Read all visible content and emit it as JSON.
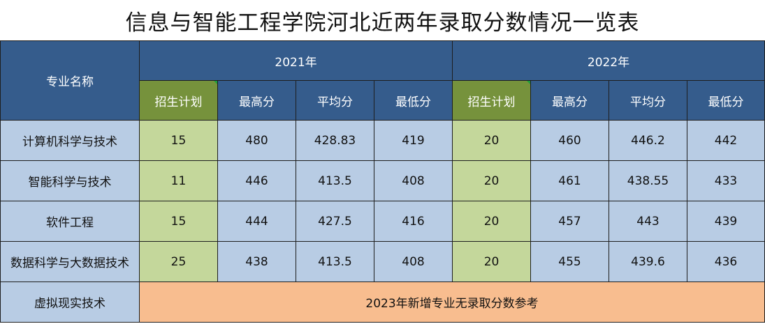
{
  "title": "信息与智能工程学院 河北 近两年录取分数情况一览表",
  "title_segments": [
    "信息与智能工程学院",
    "河北",
    "近两年录取分数情况一览表"
  ],
  "header": {
    "major_name": "专业名称",
    "years": [
      "2021年",
      "2022年"
    ],
    "columns": [
      "招生计划",
      "最高分",
      "平均分",
      "最低分"
    ]
  },
  "rows": [
    {
      "name": "计算机科学与技术",
      "y2021": [
        "15",
        "480",
        "428.83",
        "419"
      ],
      "y2022": [
        "20",
        "460",
        "446.2",
        "442"
      ]
    },
    {
      "name": "智能科学与技术",
      "y2021": [
        "11",
        "446",
        "413.5",
        "408"
      ],
      "y2022": [
        "20",
        "461",
        "438.55",
        "433"
      ]
    },
    {
      "name": "软件工程",
      "y2021": [
        "15",
        "444",
        "427.5",
        "416"
      ],
      "y2022": [
        "20",
        "457",
        "443",
        "439"
      ]
    },
    {
      "name": "数据科学与大数据技术",
      "y2021": [
        "25",
        "438",
        "413.5",
        "408"
      ],
      "y2022": [
        "20",
        "455",
        "439.6",
        "436"
      ]
    }
  ],
  "new_major": {
    "name": "虚拟现实技术",
    "note": "2023年新增专业无录取分数参考"
  },
  "colors": {
    "header_blue": "#355c8c",
    "plan_green": "#76923c",
    "cell_blue": "#b8cce4",
    "cell_green": "#c4d79b",
    "note_orange": "#f8bd8f"
  }
}
